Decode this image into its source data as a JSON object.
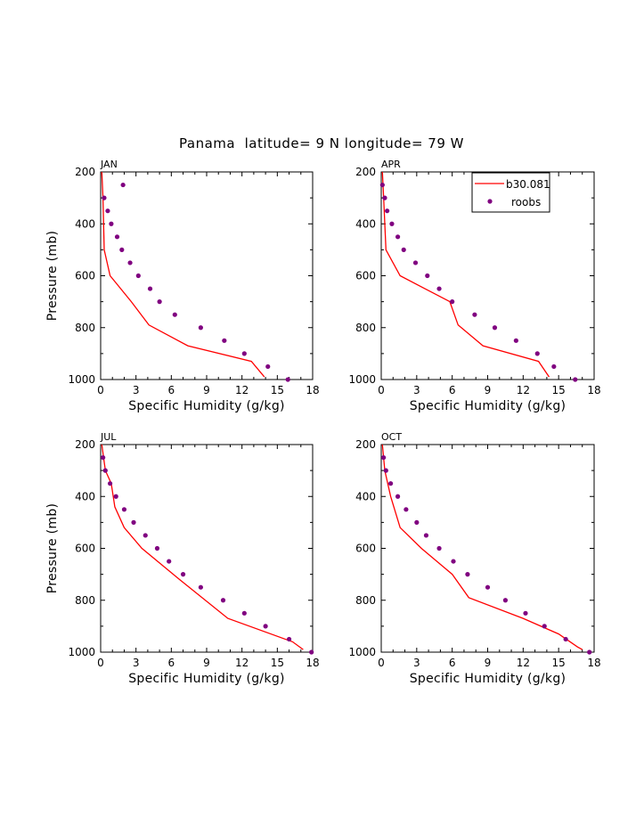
{
  "chart_data": {
    "type": "line",
    "title": "Panama  latitude= 9 N longitude= 79 W",
    "xlabel": "Specific Humidity (g/kg)",
    "ylabel": "Pressure (mb)",
    "xlim": [
      0,
      18
    ],
    "ylim": [
      1000,
      200
    ],
    "xticks": [
      0,
      3,
      6,
      9,
      12,
      15,
      18
    ],
    "yticks": [
      200,
      400,
      600,
      800,
      1000
    ],
    "legend": {
      "placement": "top-right of APR panel",
      "entries": [
        "b30.081",
        "roobs"
      ]
    },
    "series_style": {
      "b30.081": {
        "kind": "line",
        "color": "#ff0000"
      },
      "roobs": {
        "kind": "points",
        "color": "#800080"
      }
    },
    "panels": [
      {
        "label": "JAN",
        "model": {
          "name": "b30.081",
          "points": [
            [
              0.1,
              200
            ],
            [
              0.2,
              300
            ],
            [
              0.3,
              500
            ],
            [
              0.8,
              600
            ],
            [
              2.6,
              700
            ],
            [
              4.1,
              790
            ],
            [
              7.4,
              870
            ],
            [
              12.8,
              930
            ],
            [
              13.9,
              990
            ]
          ]
        },
        "obs": {
          "name": "roobs",
          "points": [
            [
              1.9,
              250
            ],
            [
              0.3,
              300
            ],
            [
              0.6,
              350
            ],
            [
              0.9,
              400
            ],
            [
              1.4,
              450
            ],
            [
              1.8,
              500
            ],
            [
              2.5,
              550
            ],
            [
              3.2,
              600
            ],
            [
              4.2,
              650
            ],
            [
              5.0,
              700
            ],
            [
              6.3,
              750
            ],
            [
              8.5,
              800
            ],
            [
              10.5,
              850
            ],
            [
              12.2,
              900
            ],
            [
              14.2,
              950
            ],
            [
              15.9,
              1000
            ]
          ]
        }
      },
      {
        "label": "APR",
        "model": {
          "name": "b30.081",
          "points": [
            [
              0.1,
              200
            ],
            [
              0.2,
              300
            ],
            [
              0.4,
              500
            ],
            [
              1.6,
              600
            ],
            [
              3.7,
              650
            ],
            [
              5.8,
              700
            ],
            [
              6.5,
              790
            ],
            [
              8.6,
              870
            ],
            [
              13.3,
              930
            ],
            [
              14.2,
              990
            ]
          ]
        },
        "obs": {
          "name": "roobs",
          "points": [
            [
              0.1,
              250
            ],
            [
              0.3,
              300
            ],
            [
              0.5,
              350
            ],
            [
              0.9,
              400
            ],
            [
              1.4,
              450
            ],
            [
              1.9,
              500
            ],
            [
              2.9,
              550
            ],
            [
              3.9,
              600
            ],
            [
              4.9,
              650
            ],
            [
              6.0,
              700
            ],
            [
              7.9,
              750
            ],
            [
              9.6,
              800
            ],
            [
              11.4,
              850
            ],
            [
              13.2,
              900
            ],
            [
              14.6,
              950
            ],
            [
              16.4,
              1000
            ]
          ]
        }
      },
      {
        "label": "JUL",
        "model": {
          "name": "b30.081",
          "points": [
            [
              0.1,
              200
            ],
            [
              0.4,
              300
            ],
            [
              0.9,
              350
            ],
            [
              1.2,
              440
            ],
            [
              2.0,
              520
            ],
            [
              3.5,
              600
            ],
            [
              6.7,
              720
            ],
            [
              10.8,
              870
            ],
            [
              16.3,
              960
            ],
            [
              17.2,
              990
            ]
          ]
        },
        "obs": {
          "name": "roobs",
          "points": [
            [
              0.2,
              250
            ],
            [
              0.4,
              300
            ],
            [
              0.8,
              350
            ],
            [
              1.3,
              400
            ],
            [
              2.0,
              450
            ],
            [
              2.8,
              500
            ],
            [
              3.8,
              550
            ],
            [
              4.8,
              600
            ],
            [
              5.8,
              650
            ],
            [
              7.0,
              700
            ],
            [
              8.5,
              750
            ],
            [
              10.4,
              800
            ],
            [
              12.2,
              850
            ],
            [
              14.0,
              900
            ],
            [
              16.0,
              950
            ],
            [
              17.9,
              1000
            ]
          ]
        }
      },
      {
        "label": "OCT",
        "model": {
          "name": "b30.081",
          "points": [
            [
              0.1,
              200
            ],
            [
              0.3,
              300
            ],
            [
              0.8,
              400
            ],
            [
              1.6,
              520
            ],
            [
              3.4,
              600
            ],
            [
              6.0,
              700
            ],
            [
              7.4,
              790
            ],
            [
              12.0,
              870
            ],
            [
              15.0,
              930
            ],
            [
              16.6,
              980
            ],
            [
              17.0,
              990
            ]
          ]
        },
        "obs": {
          "name": "roobs",
          "points": [
            [
              0.2,
              250
            ],
            [
              0.4,
              300
            ],
            [
              0.8,
              350
            ],
            [
              1.4,
              400
            ],
            [
              2.1,
              450
            ],
            [
              3.0,
              500
            ],
            [
              3.8,
              550
            ],
            [
              4.9,
              600
            ],
            [
              6.1,
              650
            ],
            [
              7.3,
              700
            ],
            [
              9.0,
              750
            ],
            [
              10.5,
              800
            ],
            [
              12.2,
              850
            ],
            [
              13.8,
              900
            ],
            [
              15.6,
              950
            ],
            [
              17.6,
              1000
            ]
          ]
        }
      }
    ]
  }
}
